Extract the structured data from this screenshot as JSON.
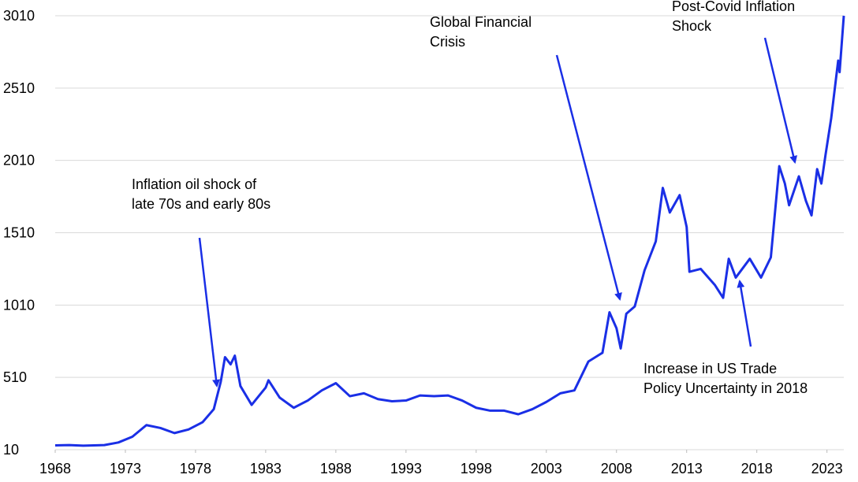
{
  "chart_data": {
    "type": "line",
    "x": [
      1968,
      1969,
      1970,
      1971.5,
      1972.5,
      1973.5,
      1974.5,
      1975.5,
      1976.5,
      1977.5,
      1978.5,
      1979.3,
      1979.8,
      1980.1,
      1980.5,
      1980.8,
      1981.2,
      1982,
      1983,
      1983.2,
      1984,
      1985,
      1986,
      1987,
      1988,
      1989,
      1990,
      1991,
      1992,
      1993,
      1994,
      1995,
      1996,
      1997,
      1998,
      1999,
      2000,
      2001,
      2002,
      2003,
      2004,
      2005,
      2006,
      2007,
      2007.5,
      2008,
      2008.3,
      2008.7,
      2009.3,
      2010,
      2010.8,
      2011.3,
      2011.8,
      2012.5,
      2013,
      2013.2,
      2014,
      2015,
      2015.6,
      2016,
      2016.5,
      2017.5,
      2018.3,
      2019,
      2019.6,
      2020,
      2020.3,
      2021,
      2021.5,
      2021.9,
      2022.3,
      2022.6,
      2022.9,
      2023.3,
      2023.8,
      2023.9,
      2024.2
    ],
    "series": [
      {
        "color": "#1a2fe6",
        "values": [
          40,
          42,
          38,
          42,
          60,
          100,
          180,
          160,
          125,
          150,
          200,
          290,
          480,
          650,
          600,
          660,
          450,
          320,
          440,
          490,
          370,
          300,
          350,
          420,
          470,
          380,
          400,
          360,
          345,
          350,
          385,
          380,
          385,
          350,
          300,
          280,
          280,
          255,
          290,
          340,
          400,
          420,
          620,
          680,
          960,
          850,
          710,
          950,
          1000,
          1250,
          1450,
          1820,
          1650,
          1770,
          1550,
          1240,
          1260,
          1150,
          1060,
          1330,
          1200,
          1330,
          1200,
          1340,
          1970,
          1850,
          1700,
          1900,
          1730,
          1630,
          1950,
          1850,
          2050,
          2300,
          2700,
          2620,
          3010
        ]
      }
    ],
    "xlim": [
      1968,
      2024.2
    ],
    "xticks": [
      1968,
      1973,
      1978,
      1983,
      1988,
      1993,
      1998,
      2003,
      2008,
      2013,
      2018,
      2023
    ],
    "ylim": [
      10,
      3010
    ],
    "yticks": [
      10,
      510,
      1010,
      1510,
      2010,
      2510,
      3010
    ],
    "grid": true,
    "annotations": [
      {
        "lines": [
          "Inflation oil shock of",
          "late 70s and early 80s"
        ]
      },
      {
        "lines": [
          "Global Financial",
          "Crisis"
        ]
      },
      {
        "lines": [
          "Post-Covid Inflation",
          "Shock"
        ]
      },
      {
        "lines": [
          "Increase in US Trade",
          "Policy Uncertainty in 2018"
        ]
      }
    ]
  }
}
